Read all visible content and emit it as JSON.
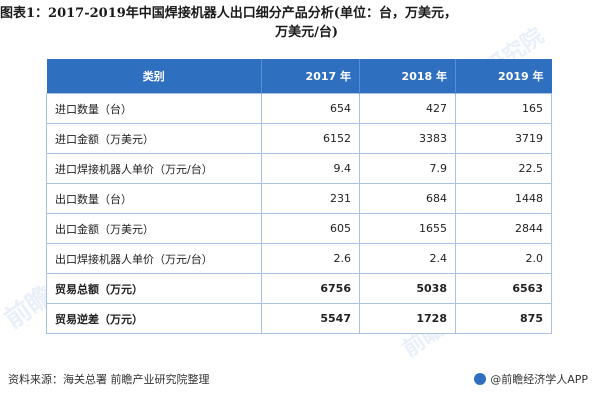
{
  "title_line1": "图表1：2017-2019年中国焊接机器人出口细分产品分析(单位：台，万美元，",
  "title_line2": "万美元/台)",
  "table": {
    "headers": [
      "类别",
      "2017 年",
      "2018 年",
      "2019 年"
    ],
    "rows": [
      {
        "label": "进口数量（台）",
        "values": [
          "654",
          "427",
          "165"
        ],
        "bold": false
      },
      {
        "label": "进口金额（万美元）",
        "values": [
          "6152",
          "3383",
          "3719"
        ],
        "bold": false
      },
      {
        "label": "进口焊接机器人单价（万元/台）",
        "values": [
          "9.4",
          "7.9",
          "22.5"
        ],
        "bold": false
      },
      {
        "label": "出口数量（台）",
        "values": [
          "231",
          "684",
          "1448"
        ],
        "bold": false
      },
      {
        "label": "出口金额（万美元）",
        "values": [
          "605",
          "1655",
          "2844"
        ],
        "bold": false
      },
      {
        "label": "出口焊接机器人单价（万元/台）",
        "values": [
          "2.6",
          "2.4",
          "2.0"
        ],
        "bold": false
      },
      {
        "label": "贸易总额（万元）",
        "values": [
          "6756",
          "5038",
          "6563"
        ],
        "bold": true
      },
      {
        "label": "贸易逆差（万元）",
        "values": [
          "5547",
          "1728",
          "875"
        ],
        "bold": true
      }
    ]
  },
  "watermarks": [
    "前瞻产业研究院",
    "前瞻产业研究院",
    "前瞻产业研究院"
  ],
  "footer": {
    "source": "资料来源：海关总署 前瞻产业研究院整理",
    "brand": "@前瞻经济学人APP"
  },
  "colors": {
    "header_bg": "#2e6fc0",
    "border": "#a9c1e0"
  }
}
